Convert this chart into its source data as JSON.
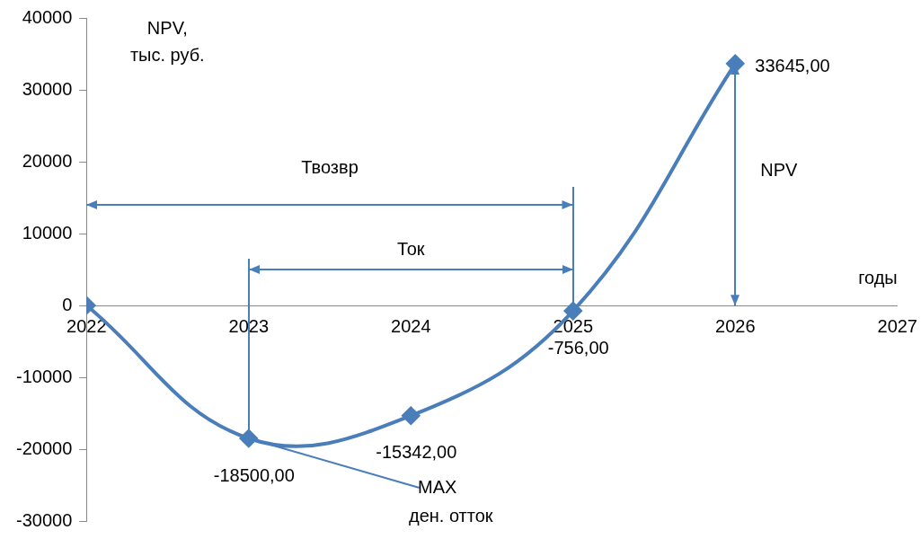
{
  "chart_data": {
    "type": "line",
    "ylabel": "NPV,\nтыс. руб.",
    "xlabel": "годы",
    "x": [
      2022,
      2023,
      2024,
      2025,
      2026
    ],
    "series": [
      {
        "color": "#4a7ebb",
        "values": [
          0,
          -18500,
          -15342,
          -756,
          33645
        ],
        "value_labels": [
          null,
          "-18500,00",
          "-15342,00",
          "-756,00",
          "33645,00"
        ]
      }
    ],
    "xlim": [
      2022,
      2027
    ],
    "xticks": [
      2022,
      2023,
      2024,
      2025,
      2026,
      2027
    ],
    "ylim": [
      -30000,
      40000
    ],
    "yticks": [
      -30000,
      -20000,
      -10000,
      0,
      10000,
      20000,
      30000,
      40000
    ],
    "grid": false,
    "legend": false,
    "marker": "diamond",
    "line_style": "solid",
    "annotations": [
      "Твозвр",
      "Ток",
      "NPV",
      {
        "text": "MAX\nден. отток",
        "x": 2023,
        "y": -18500
      }
    ]
  }
}
